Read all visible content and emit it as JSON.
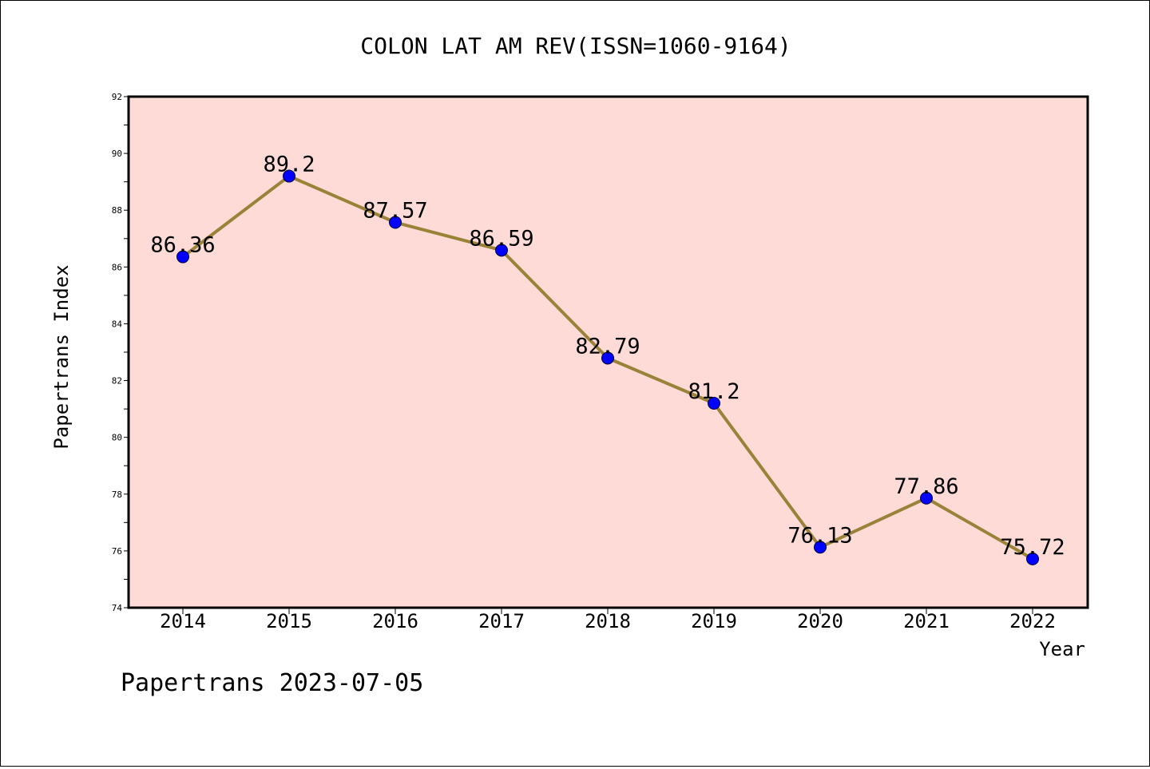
{
  "chart_data": {
    "type": "line",
    "title": "COLON LAT AM REV(ISSN=1060-9164)",
    "xlabel": "Year",
    "ylabel": "Papertrans Index",
    "x": [
      "2014",
      "2015",
      "2016",
      "2017",
      "2018",
      "2019",
      "2020",
      "2021",
      "2022"
    ],
    "series": [
      {
        "values": [
          86.36,
          89.2,
          87.57,
          86.59,
          82.79,
          81.2,
          76.13,
          77.86,
          75.72
        ],
        "labels": [
          "86.36",
          "89.2",
          "87.57",
          "86.59",
          "82.79",
          "81.2",
          "76.13",
          "77.86",
          "75.72"
        ]
      }
    ],
    "ylim": [
      74,
      92
    ],
    "yticks": [
      "74",
      "76",
      "78",
      "80",
      "82",
      "84",
      "86",
      "88",
      "90",
      "92"
    ],
    "grid": false,
    "colors": {
      "plot_background": "#ffdbd8",
      "line": "#9a8238",
      "marker": "#0000ff"
    }
  },
  "footer": {
    "watermark": "Papertrans 2023-07-05"
  }
}
